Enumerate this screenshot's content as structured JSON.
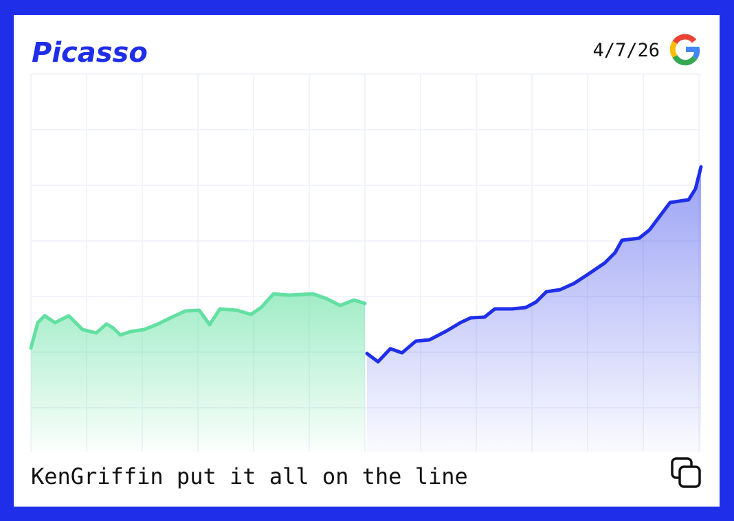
{
  "header": {
    "logo": "Picasso",
    "date": "4/7/26"
  },
  "caption": "KenGriffin put it all on the line",
  "chart_data": {
    "type": "line",
    "xlim": [
      0,
      975
    ],
    "ylim": [
      0,
      550
    ],
    "grid": true,
    "series": [
      {
        "color": "#62e0a1",
        "x": [
          0,
          10,
          20,
          35,
          45,
          55,
          65,
          75,
          95,
          110,
          120,
          130,
          145,
          165,
          185,
          205,
          225,
          245,
          260,
          275,
          300,
          320,
          335,
          353,
          375,
          410,
          430,
          450,
          470,
          486
        ],
        "values": [
          151,
          188,
          198,
          188,
          193,
          198,
          188,
          178,
          173,
          186,
          180,
          170,
          175,
          178,
          186,
          196,
          205,
          206,
          185,
          208,
          206,
          200,
          210,
          230,
          228,
          230,
          223,
          213,
          221,
          216
        ]
      },
      {
        "color": "#1f2ee8",
        "x": [
          489,
          505,
          523,
          540,
          560,
          580,
          605,
          625,
          640,
          660,
          675,
          700,
          720,
          735,
          750,
          770,
          790,
          810,
          835,
          850,
          860,
          885,
          900,
          915,
          930,
          957,
          967,
          975
        ],
        "values": [
          143,
          131,
          150,
          144,
          161,
          163,
          176,
          188,
          195,
          196,
          208,
          208,
          210,
          218,
          233,
          236,
          245,
          258,
          275,
          290,
          308,
          311,
          323,
          343,
          363,
          367,
          383,
          415
        ]
      }
    ]
  }
}
